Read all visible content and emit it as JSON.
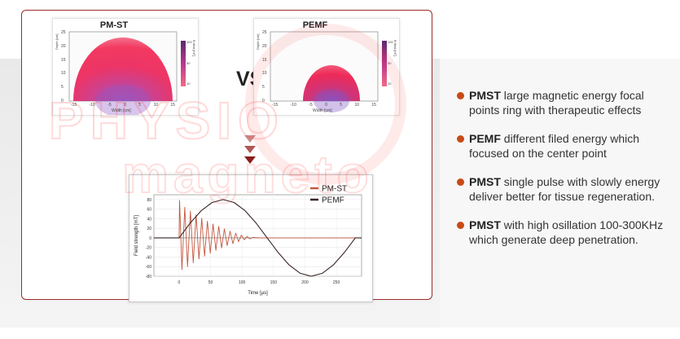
{
  "comparison": {
    "left_title": "PM-ST",
    "right_title": "PEMF",
    "vs_label": "VS",
    "heatmap_y_label": "Depth [cm]",
    "heatmap_x_label": "Width [cm]",
    "heatmap_x_ticks": [
      "-15",
      "-10",
      "-5",
      "0",
      "5",
      "10",
      "15"
    ],
    "heatmap_y_ticks": [
      "0",
      "5",
      "10",
      "15",
      "20",
      "25"
    ],
    "colorbar_label": "B field [mT]",
    "colorbar_ticks": [
      "100",
      "50",
      "10"
    ]
  },
  "chart_data": {
    "type": "line",
    "xlabel": "Time [μs]",
    "ylabel": "Field strength [mT]",
    "xlim": [
      -40,
      290
    ],
    "ylim": [
      -80,
      90
    ],
    "x_ticks": [
      0,
      50,
      100,
      150,
      200,
      250
    ],
    "y_ticks": [
      80,
      60,
      40,
      20,
      0,
      -20,
      -40,
      -60,
      -80
    ],
    "legend_position": "top-right",
    "series": [
      {
        "name": "PM-ST",
        "color": "#c4563e",
        "x": [
          -40,
          0,
          0.8,
          4.5,
          9,
          13.5,
          18,
          22.5,
          27,
          31.5,
          36,
          40.5,
          45,
          49.5,
          54,
          58.5,
          63,
          67.5,
          72,
          76.5,
          81,
          85.5,
          90,
          94.5,
          99,
          103.5,
          108,
          112.5,
          117,
          130,
          290
        ],
        "y": [
          0,
          0,
          78,
          -66,
          64,
          -60,
          56,
          -52,
          48,
          -44,
          41,
          -38,
          35,
          -32,
          29,
          -26,
          24,
          -21,
          19,
          -16,
          14,
          -12,
          10,
          -8,
          6,
          -4,
          3,
          -2,
          1,
          0,
          0
        ]
      },
      {
        "name": "PEMF",
        "color": "#3a2424",
        "x": [
          -40,
          0,
          17.5,
          35,
          52.5,
          70,
          87.5,
          105,
          122.5,
          140,
          157.5,
          175,
          192.5,
          210,
          227.5,
          245,
          262.5,
          280,
          290
        ],
        "y": [
          0,
          0,
          30.6,
          56.6,
          73.9,
          80,
          73.9,
          56.6,
          30.6,
          0,
          -30.6,
          -56.6,
          -73.9,
          -80,
          -73.9,
          -56.6,
          -30.6,
          0,
          0
        ]
      }
    ]
  },
  "points": [
    {
      "keyword": "PMST",
      "text": " large magnetic energy focal points ring with therapeutic effects"
    },
    {
      "keyword": "PEMF",
      "text": " different filed energy which focused on the center point"
    },
    {
      "keyword": "PMST",
      "text": " single pulse with slowly energy deliver better for tissue regeneration."
    },
    {
      "keyword": "PMST",
      "text": " with high osillation 100-300KHz which generate deep penetration."
    }
  ],
  "watermark": {
    "line1": "PHYSIO",
    "line2": "magneto"
  },
  "colors": {
    "accent": "#c84a15",
    "frame": "#9b2a2a",
    "arrow": "#8c1c1c"
  }
}
